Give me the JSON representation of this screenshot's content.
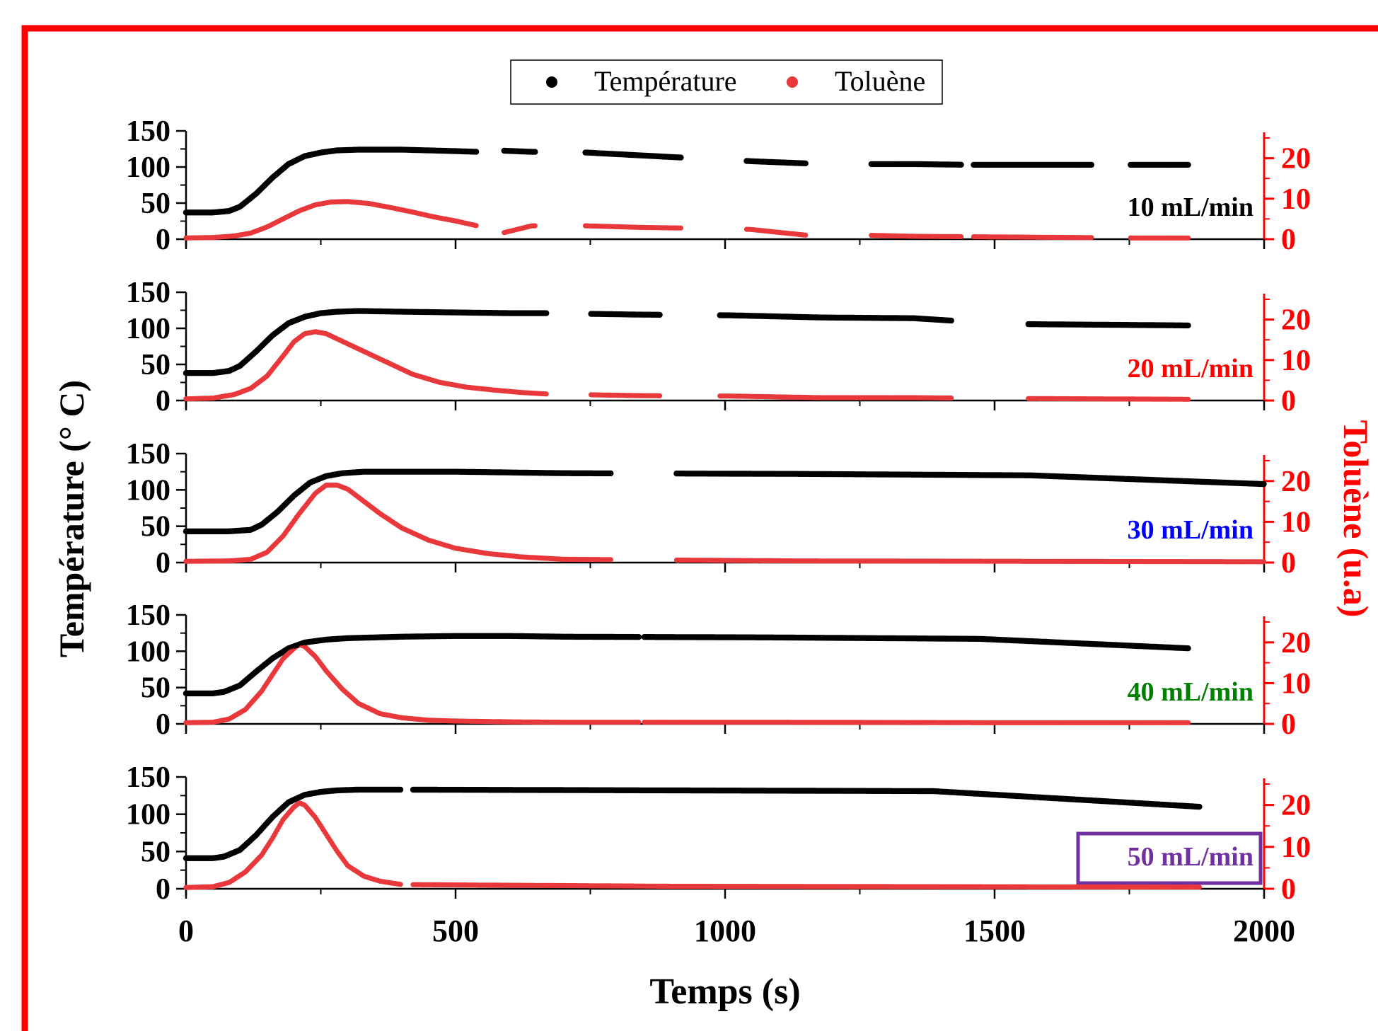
{
  "chart_data": {
    "type": "scatter",
    "xlabel": "Temps (s)",
    "ylabel_left": "Température (° C)",
    "ylabel_right": "Toluène (u.a)",
    "xlim": [
      0,
      2000
    ],
    "x_ticks": [
      "0",
      "500",
      "1000",
      "1500",
      "2000"
    ],
    "ylim_left": [
      0,
      150
    ],
    "y_ticks_left": [
      "150",
      "100",
      "50",
      "0"
    ],
    "ylim_right": [
      0,
      25
    ],
    "y_ticks_right": [
      "20",
      "10",
      "0"
    ],
    "grid": false,
    "legend": {
      "position": "top-center",
      "entries": [
        "Température",
        "Toluène"
      ]
    },
    "colors": {
      "temperature": "#000000",
      "toluene": "#e8383b",
      "right_axis": "#ff0000",
      "frame": "#ff0000"
    },
    "panels": [
      {
        "label": "10 mL/min",
        "label_color": "#000000",
        "label_boxed": false,
        "series": [
          {
            "name": "Température",
            "x": [
              0,
              50,
              80,
              100,
              130,
              160,
              190,
              220,
              250,
              280,
              320,
              400,
              500,
              540
            ],
            "y": [
              37,
              37,
              39,
              45,
              63,
              85,
              104,
              115,
              120,
              123,
              124,
              124,
              122,
              121
            ]
          },
          {
            "name": "Toluène",
            "x": [
              0,
              50,
              90,
              120,
              150,
              180,
              210,
              240,
              270,
              300,
              340,
              380,
              420,
              460,
              500,
              540
            ],
            "y": [
              0.3,
              0.4,
              0.8,
              1.5,
              3.0,
              5.0,
              7.0,
              8.5,
              9.2,
              9.3,
              8.8,
              7.8,
              6.7,
              5.5,
              4.5,
              3.3
            ]
          }
        ],
        "segments": [
          [
            0,
            540
          ],
          [
            590,
            650
          ],
          [
            740,
            920
          ],
          [
            1040,
            1150
          ],
          [
            1270,
            1440
          ],
          [
            1460,
            1680
          ],
          [
            1750,
            1860
          ]
        ],
        "segment_temperature": [
          124,
          121,
          120,
          116,
          112,
          108,
          105,
          104,
          104,
          103,
          103,
          103,
          103,
          103
        ],
        "segment_toluene": [
          0,
          3.3,
          3.3,
          2.9,
          2.7,
          2.4,
          1.0,
          1.0,
          0.7,
          0.6,
          0.5,
          0.4,
          0.3,
          0.3
        ]
      },
      {
        "label": "20 mL/min",
        "label_color": "#ff0000",
        "label_boxed": false,
        "series": [
          {
            "name": "Température",
            "x": [
              0,
              50,
              80,
              100,
              130,
              160,
              190,
              220,
              250,
              280,
              320,
              400,
              500,
              600,
              670
            ],
            "y": [
              38,
              38,
              41,
              48,
              68,
              90,
              107,
              116,
              121,
              123,
              124,
              123,
              122,
              121,
              121
            ]
          },
          {
            "name": "Toluène",
            "x": [
              0,
              50,
              90,
              120,
              150,
              180,
              200,
              220,
              240,
              260,
              300,
              340,
              380,
              420,
              470,
              520,
              570,
              620,
              670
            ],
            "y": [
              0.4,
              0.6,
              1.5,
              3.0,
              6.0,
              11.0,
              14.5,
              16.5,
              17.0,
              16.5,
              14.0,
              11.5,
              9.0,
              6.5,
              4.5,
              3.3,
              2.6,
              2.0,
              1.6
            ]
          }
        ],
        "segments": [
          [
            0,
            670
          ],
          [
            750,
            880
          ],
          [
            990,
            1420
          ],
          [
            1560,
            1860
          ]
        ],
        "segment_temperature": [
          121,
          119,
          118,
          115,
          114,
          106,
          105,
          104
        ],
        "segment_toluene": [
          1.6,
          1.2,
          1.1,
          0.7,
          0.7,
          0.5,
          0.4,
          0.3
        ]
      },
      {
        "label": "30 mL/min",
        "label_color": "#0000ff",
        "label_boxed": false,
        "series": [
          {
            "name": "Température",
            "x": [
              0,
              80,
              120,
              140,
              170,
              200,
              230,
              260,
              290,
              330,
              400,
              500,
              600,
              700
            ],
            "y": [
              43,
              43,
              45,
              52,
              70,
              92,
              110,
              119,
              123,
              125,
              125,
              125,
              124,
              123
            ]
          },
          {
            "name": "Toluène",
            "x": [
              0,
              80,
              120,
              150,
              180,
              210,
              240,
              260,
              280,
              300,
              330,
              360,
              400,
              450,
              500,
              560,
              620,
              700
            ],
            "y": [
              0.3,
              0.4,
              0.8,
              2.5,
              6.5,
              12.0,
              17.0,
              19.0,
              19.0,
              18.0,
              15.0,
              12.0,
              8.5,
              5.5,
              3.5,
              2.2,
              1.4,
              0.8
            ]
          }
        ],
        "segments": [
          [
            0,
            790
          ],
          [
            910,
            2000
          ]
        ],
        "segment_temperature": [
          123,
          122,
          120,
          108
        ],
        "segment_toluene": [
          0.8,
          0.4,
          0.3,
          0.2
        ]
      },
      {
        "label": "40 mL/min",
        "label_color": "#008000",
        "label_boxed": false,
        "series": [
          {
            "name": "Température",
            "x": [
              0,
              50,
              70,
              100,
              130,
              160,
              190,
              220,
              260,
              300,
              400,
              500,
              600,
              700
            ],
            "y": [
              42,
              42,
              44,
              53,
              72,
              90,
              104,
              112,
              116,
              118,
              120,
              121,
              121,
              120
            ]
          },
          {
            "name": "Toluène",
            "x": [
              0,
              50,
              80,
              110,
              140,
              160,
              180,
              200,
              210,
              220,
              240,
              260,
              290,
              320,
              360,
              400,
              450,
              500,
              600,
              700
            ],
            "y": [
              0.3,
              0.4,
              1.2,
              3.5,
              8.0,
              12.0,
              16.0,
              18.5,
              19.5,
              19.0,
              16.5,
              13.0,
              8.5,
              5.0,
              2.5,
              1.5,
              0.9,
              0.7,
              0.5,
              0.4
            ]
          }
        ],
        "segments": [
          [
            0,
            840
          ],
          [
            850,
            1860
          ]
        ],
        "segment_temperature": [
          120,
          119,
          117,
          104
        ],
        "segment_toluene": [
          0.4,
          0.4,
          0.3,
          0.3
        ]
      },
      {
        "label": "50 mL/min",
        "label_color": "#7030a0",
        "label_boxed": true,
        "series": [
          {
            "name": "Température",
            "x": [
              0,
              50,
              70,
              100,
              130,
              160,
              190,
              220,
              250,
              280,
              320,
              360,
              400
            ],
            "y": [
              41,
              41,
              43,
              52,
              72,
              96,
              116,
              126,
              130,
              132,
              133,
              133,
              133
            ]
          },
          {
            "name": "Toluène",
            "x": [
              0,
              50,
              80,
              110,
              140,
              160,
              180,
              200,
              210,
              220,
              240,
              260,
              280,
              300,
              330,
              360,
              400
            ],
            "y": [
              0.3,
              0.5,
              1.5,
              4.0,
              8.0,
              12.0,
              16.5,
              19.5,
              20.5,
              20.0,
              17.0,
              13.0,
              9.0,
              5.5,
              3.0,
              1.8,
              1.0
            ]
          }
        ],
        "segments": [
          [
            0,
            400
          ],
          [
            420,
            1880
          ]
        ],
        "segment_temperature": [
          133,
          132,
          131,
          110
        ],
        "segment_toluene": [
          1.0,
          0.6,
          0.5,
          0.4
        ]
      }
    ]
  }
}
